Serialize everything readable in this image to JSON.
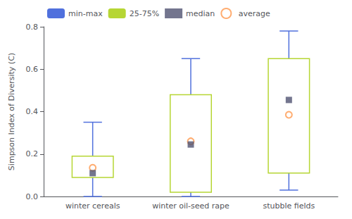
{
  "chart_data": {
    "type": "box",
    "categories": [
      "winter cereals",
      "winter oil-seed rape",
      "stubble fields"
    ],
    "series": [
      {
        "name": "min-max",
        "type": "range",
        "low": [
          0.0,
          0.0,
          0.03
        ],
        "high": [
          0.35,
          0.65,
          0.78
        ]
      },
      {
        "name": "25-75%",
        "type": "box",
        "q1": [
          0.09,
          0.02,
          0.11
        ],
        "q3": [
          0.19,
          0.48,
          0.65
        ]
      },
      {
        "name": "median",
        "type": "scatter",
        "marker": "square",
        "values": [
          0.11,
          0.245,
          0.455
        ]
      },
      {
        "name": "average",
        "type": "scatter",
        "marker": "circle",
        "values": [
          0.135,
          0.26,
          0.385
        ]
      }
    ],
    "ylabel": "Simpson Index of Diversity (C)",
    "ylim": [
      0,
      0.8
    ],
    "yticks": [
      {
        "value": 0,
        "label": "0.0"
      },
      0.2,
      0.4,
      0.6,
      0.8
    ],
    "grid": false,
    "legend": "upper left"
  }
}
